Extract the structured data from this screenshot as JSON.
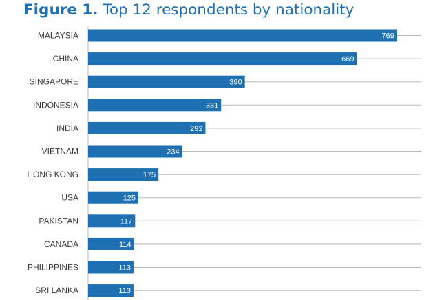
{
  "title": {
    "lead": "Figure 1.",
    "rest": "Top 12 respondents by nationality"
  },
  "colors": {
    "bar": "#1f6fb3",
    "title": "#1f6fb3",
    "label": "#3a3a3a",
    "gridline": "#b8b8b8"
  },
  "chart_data": {
    "type": "bar",
    "orientation": "horizontal",
    "title": "Figure 1. Top 12 respondents by nationality",
    "categories": [
      "MALAYSIA",
      "CHINA",
      "SINGAPORE",
      "INDONESIA",
      "INDIA",
      "VIETNAM",
      "HONG KONG",
      "USA",
      "PAKISTAN",
      "CANADA",
      "PHILIPPINES",
      "SRI LANKA"
    ],
    "values": [
      769,
      669,
      390,
      331,
      292,
      234,
      175,
      125,
      117,
      114,
      113,
      113
    ],
    "xlim": [
      0,
      800
    ],
    "data_labels": true,
    "grid": true,
    "legend": "none"
  }
}
